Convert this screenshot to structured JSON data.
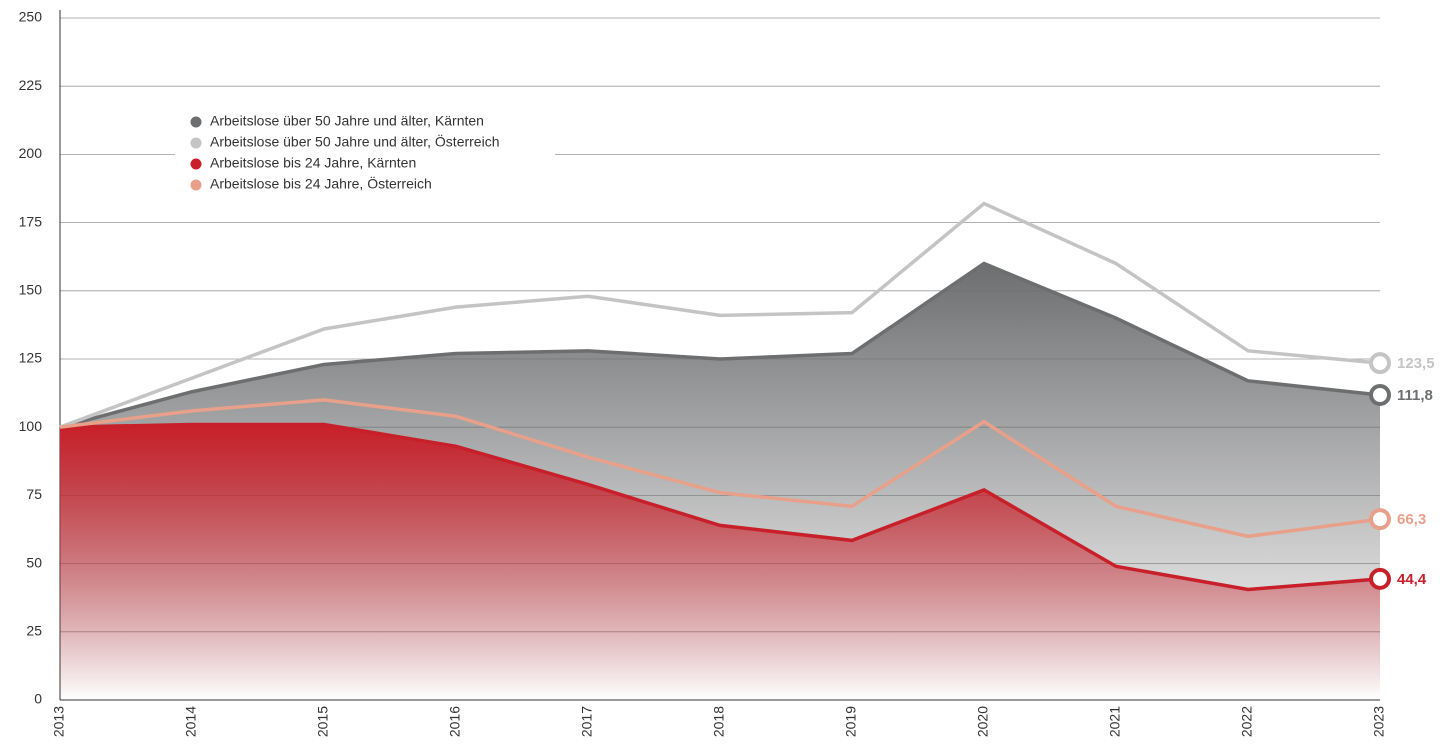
{
  "chart_data": {
    "type": "line",
    "categories": [
      "2013",
      "2014",
      "2015",
      "2016",
      "2017",
      "2018",
      "2019",
      "2020",
      "2021",
      "2022",
      "2023"
    ],
    "ylim": [
      0,
      250
    ],
    "yticks": [
      0,
      25,
      50,
      75,
      100,
      125,
      150,
      175,
      200,
      225,
      250
    ],
    "grid": true,
    "legend": "upper-left",
    "series": [
      {
        "name": "Arbeitslose über 50 Jahre und älter, Kärnten",
        "color": "#6d6e70",
        "area": true,
        "values": [
          100,
          113,
          123,
          127,
          128,
          125,
          127,
          160,
          140,
          117,
          111.8
        ],
        "value_labels": [
          null,
          null,
          null,
          null,
          null,
          null,
          null,
          null,
          null,
          null,
          "111,8"
        ]
      },
      {
        "name": "Arbeitslose über 50 Jahre und älter, Österreich",
        "color": "#c4c4c4",
        "area": false,
        "values": [
          100,
          118,
          136,
          144,
          148,
          141,
          142,
          182,
          160,
          128,
          123.5
        ],
        "value_labels": [
          null,
          null,
          null,
          null,
          null,
          null,
          null,
          null,
          null,
          null,
          "123,5"
        ]
      },
      {
        "name": "Arbeitslose bis 24 Jahre, Kärnten",
        "color": "#c8202a",
        "area": true,
        "values": [
          100,
          101,
          101,
          93,
          79,
          64,
          58.5,
          77,
          49,
          40.5,
          44.4
        ],
        "value_labels": [
          null,
          null,
          null,
          null,
          null,
          null,
          null,
          null,
          null,
          null,
          "44,4"
        ]
      },
      {
        "name": "Arbeitslose bis 24 Jahre, Österreich",
        "color": "#e8a08a",
        "area": false,
        "values": [
          100,
          106,
          110,
          104,
          89,
          76,
          71,
          102,
          71,
          60,
          66.3
        ],
        "value_labels": [
          null,
          null,
          null,
          null,
          null,
          null,
          null,
          null,
          null,
          null,
          "66,3"
        ]
      }
    ]
  }
}
